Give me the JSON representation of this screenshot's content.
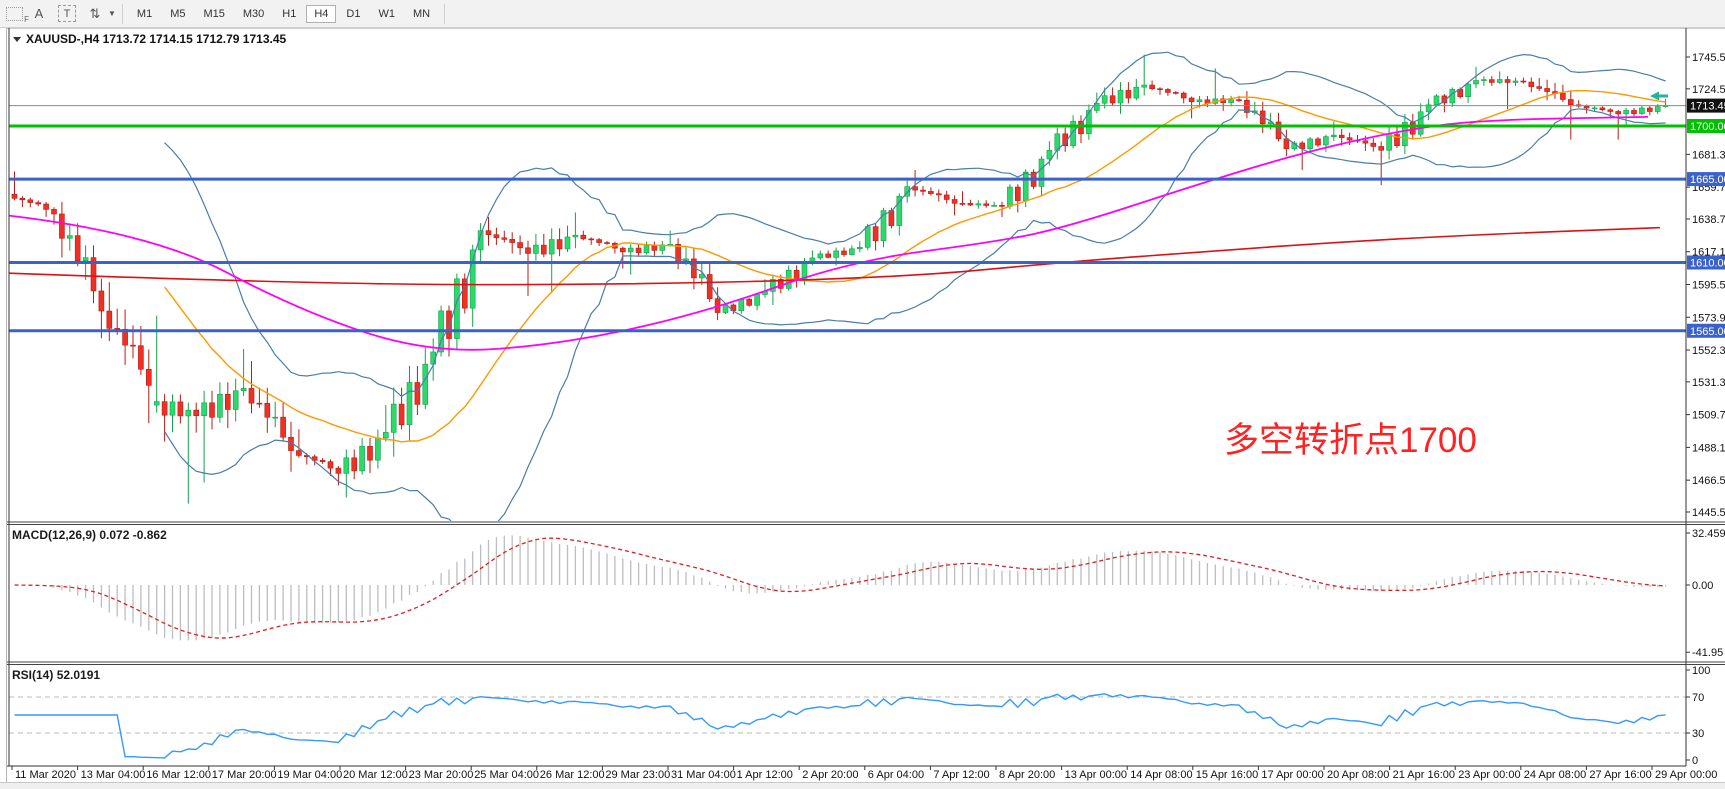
{
  "toolbar": {
    "handle_icon_label": "F",
    "text_icon": "A",
    "label_icon": "T",
    "arrows_icon": "⇅",
    "caret_icon": "▼",
    "timeframes": [
      "M1",
      "M5",
      "M15",
      "M30",
      "H1",
      "H4",
      "D1",
      "W1",
      "MN"
    ],
    "active_timeframe": "H4"
  },
  "chart": {
    "symbol_line": "XAUUSD-,H4  1713.72 1714.15 1712.79 1713.45",
    "annotation": {
      "text": "多空转折点1700",
      "color": "#ff2222"
    }
  },
  "chart_data": [
    {
      "type": "candlestick",
      "title": "XAUUSD- H4",
      "symbol": "XAUUSD-",
      "timeframe": "H4",
      "current_price": 1713.45,
      "current_bar_ohlc": [
        1713.72,
        1714.15,
        1712.79,
        1713.45
      ],
      "y_range": [
        1445.5,
        1745.5
      ],
      "y_axis_ticks": [
        "1745.50",
        "1724.50",
        "1681.30",
        "1659.70",
        "1638.70",
        "1617.10",
        "1595.50",
        "1573.90",
        "1552.30",
        "1531.30",
        "1509.70",
        "1488.10",
        "1466.50",
        "1445.50"
      ],
      "x_labels": [
        "11 Mar 2020",
        "13 Mar 04:00",
        "16 Mar 12:00",
        "17 Mar 20:00",
        "19 Mar 04:00",
        "20 Mar 12:00",
        "23 Mar 20:00",
        "25 Mar 04:00",
        "26 Mar 12:00",
        "29 Mar 23:00",
        "31 Mar 04:00",
        "1 Apr 12:00",
        "2 Apr 20:00",
        "6 Apr 04:00",
        "7 Apr 12:00",
        "8 Apr 20:00",
        "13 Apr 00:00",
        "14 Apr 08:00",
        "15 Apr 16:00",
        "17 Apr 00:00",
        "20 Apr 08:00",
        "21 Apr 16:00",
        "23 Apr 00:00",
        "24 Apr 08:00",
        "27 Apr 16:00",
        "29 Apr 00:00"
      ],
      "ohlc_daily": [
        [
          "11 Mar 2020",
          1655,
          1670,
          1635,
          1642
        ],
        [
          "12 Mar",
          1642,
          1650,
          1560,
          1578
        ],
        [
          "13 Mar",
          1578,
          1597,
          1504,
          1529
        ],
        [
          "16 Mar",
          1516,
          1575,
          1451,
          1509
        ],
        [
          "17 Mar",
          1509,
          1553,
          1465,
          1527
        ],
        [
          "18 Mar",
          1527,
          1545,
          1472,
          1486
        ],
        [
          "19 Mar",
          1486,
          1500,
          1463,
          1471
        ],
        [
          "20 Mar",
          1471,
          1516,
          1455,
          1498
        ],
        [
          "23 Mar",
          1498,
          1560,
          1482,
          1551
        ],
        [
          "24 Mar",
          1551,
          1636,
          1548,
          1631
        ],
        [
          "25 Mar",
          1631,
          1640,
          1588,
          1616
        ],
        [
          "26 Mar",
          1616,
          1643,
          1590,
          1628
        ],
        [
          "27 Mar",
          1628,
          1631,
          1606,
          1617
        ],
        [
          "30 Mar",
          1617,
          1631,
          1602,
          1622
        ],
        [
          "31 Mar",
          1622,
          1626,
          1572,
          1577
        ],
        [
          "1 Apr",
          1577,
          1599,
          1576,
          1591
        ],
        [
          "2 Apr",
          1591,
          1618,
          1582,
          1613
        ],
        [
          "3 Apr",
          1613,
          1624,
          1608,
          1620
        ],
        [
          "6 Apr",
          1620,
          1665,
          1618,
          1660
        ],
        [
          "7 Apr",
          1660,
          1671,
          1641,
          1649
        ],
        [
          "8 Apr",
          1649,
          1657,
          1640,
          1647
        ],
        [
          "9 Apr",
          1647,
          1690,
          1643,
          1684
        ],
        [
          "13 Apr",
          1684,
          1722,
          1678,
          1715
        ],
        [
          "14 Apr",
          1715,
          1747,
          1708,
          1727
        ],
        [
          "15 Apr",
          1727,
          1730,
          1705,
          1716
        ],
        [
          "16 Apr",
          1716,
          1738,
          1710,
          1717
        ],
        [
          "17 Apr",
          1717,
          1723,
          1680,
          1685
        ],
        [
          "20 Apr",
          1685,
          1703,
          1671,
          1694
        ],
        [
          "21 Apr",
          1694,
          1698,
          1661,
          1684
        ],
        [
          "22 Apr",
          1684,
          1718,
          1678,
          1714
        ],
        [
          "23 Apr",
          1714,
          1739,
          1709,
          1730
        ],
        [
          "24 Apr",
          1730,
          1736,
          1711,
          1729
        ],
        [
          "27 Apr",
          1729,
          1732,
          1691,
          1714
        ],
        [
          "28 Apr",
          1714,
          1717,
          1691,
          1708
        ],
        [
          "29 Apr",
          1708,
          1718,
          1700,
          1713.45
        ]
      ],
      "hlines": [
        {
          "price": 1713.45,
          "label": "1713.45",
          "color": "#8a8a8a",
          "label_bg": "#111111",
          "width": 1
        },
        {
          "price": 1700.0,
          "label": "1700.00",
          "color": "#00c000",
          "label_bg": "#00c000",
          "width": 3
        },
        {
          "price": 1665.0,
          "label": "1665.00",
          "color": "#3a62cc",
          "label_bg": "#3a62cc",
          "width": 3
        },
        {
          "price": 1610.0,
          "label": "1610.00",
          "color": "#3a62cc",
          "label_bg": "#3a62cc",
          "width": 3
        },
        {
          "price": 1565.0,
          "label": "1565.00",
          "color": "#3a62cc",
          "label_bg": "#3a62cc",
          "width": 3
        }
      ],
      "overlays": {
        "bollinger": {
          "period": 20,
          "deviation": 2,
          "band_color": "#4a7da8",
          "mid_color": "#ff9900"
        },
        "ma_magenta": {
          "color": "#ff00ff",
          "points": [
            [
              8,
              1641
            ],
            [
              150,
              1630
            ],
            [
              300,
              1578
            ],
            [
              430,
              1550
            ],
            [
              560,
              1556
            ],
            [
              700,
              1576
            ],
            [
              850,
              1611
            ],
            [
              1000,
              1624
            ],
            [
              1070,
              1634
            ],
            [
              1200,
              1662
            ],
            [
              1300,
              1682
            ],
            [
              1400,
              1697
            ],
            [
              1480,
              1704
            ],
            [
              1648,
              1706
            ]
          ]
        },
        "ma_red": {
          "color": "#dd1111",
          "points": [
            [
              8,
              1603
            ],
            [
              300,
              1596
            ],
            [
              600,
              1595
            ],
            [
              900,
              1600
            ],
            [
              1060,
              1610
            ],
            [
              1200,
              1617
            ],
            [
              1350,
              1624
            ],
            [
              1500,
              1629
            ],
            [
              1660,
              1633
            ]
          ]
        }
      },
      "candle_colors": {
        "up_fill": "#2bd96f",
        "up_stroke": "#17a04a",
        "down_fill": "#ee3124",
        "down_stroke": "#b91c15"
      }
    },
    {
      "type": "macd",
      "label": "MACD(12,26,9)",
      "current_values": "0.072 -0.862",
      "params": [
        12,
        26,
        9
      ],
      "y_axis_ticks": [
        "32.459",
        "0.00",
        "-41.95"
      ],
      "y_range": [
        -41.95,
        32.459
      ],
      "histogram_color": "#bdbdbd",
      "signal_color": "#e02020"
    },
    {
      "type": "rsi",
      "label": "RSI(14)",
      "current_value": "52.0191",
      "period": 14,
      "levels": [
        70,
        30
      ],
      "y_axis_ticks": [
        "100",
        "70",
        "30",
        "0"
      ],
      "line_color": "#3399ff"
    }
  ]
}
